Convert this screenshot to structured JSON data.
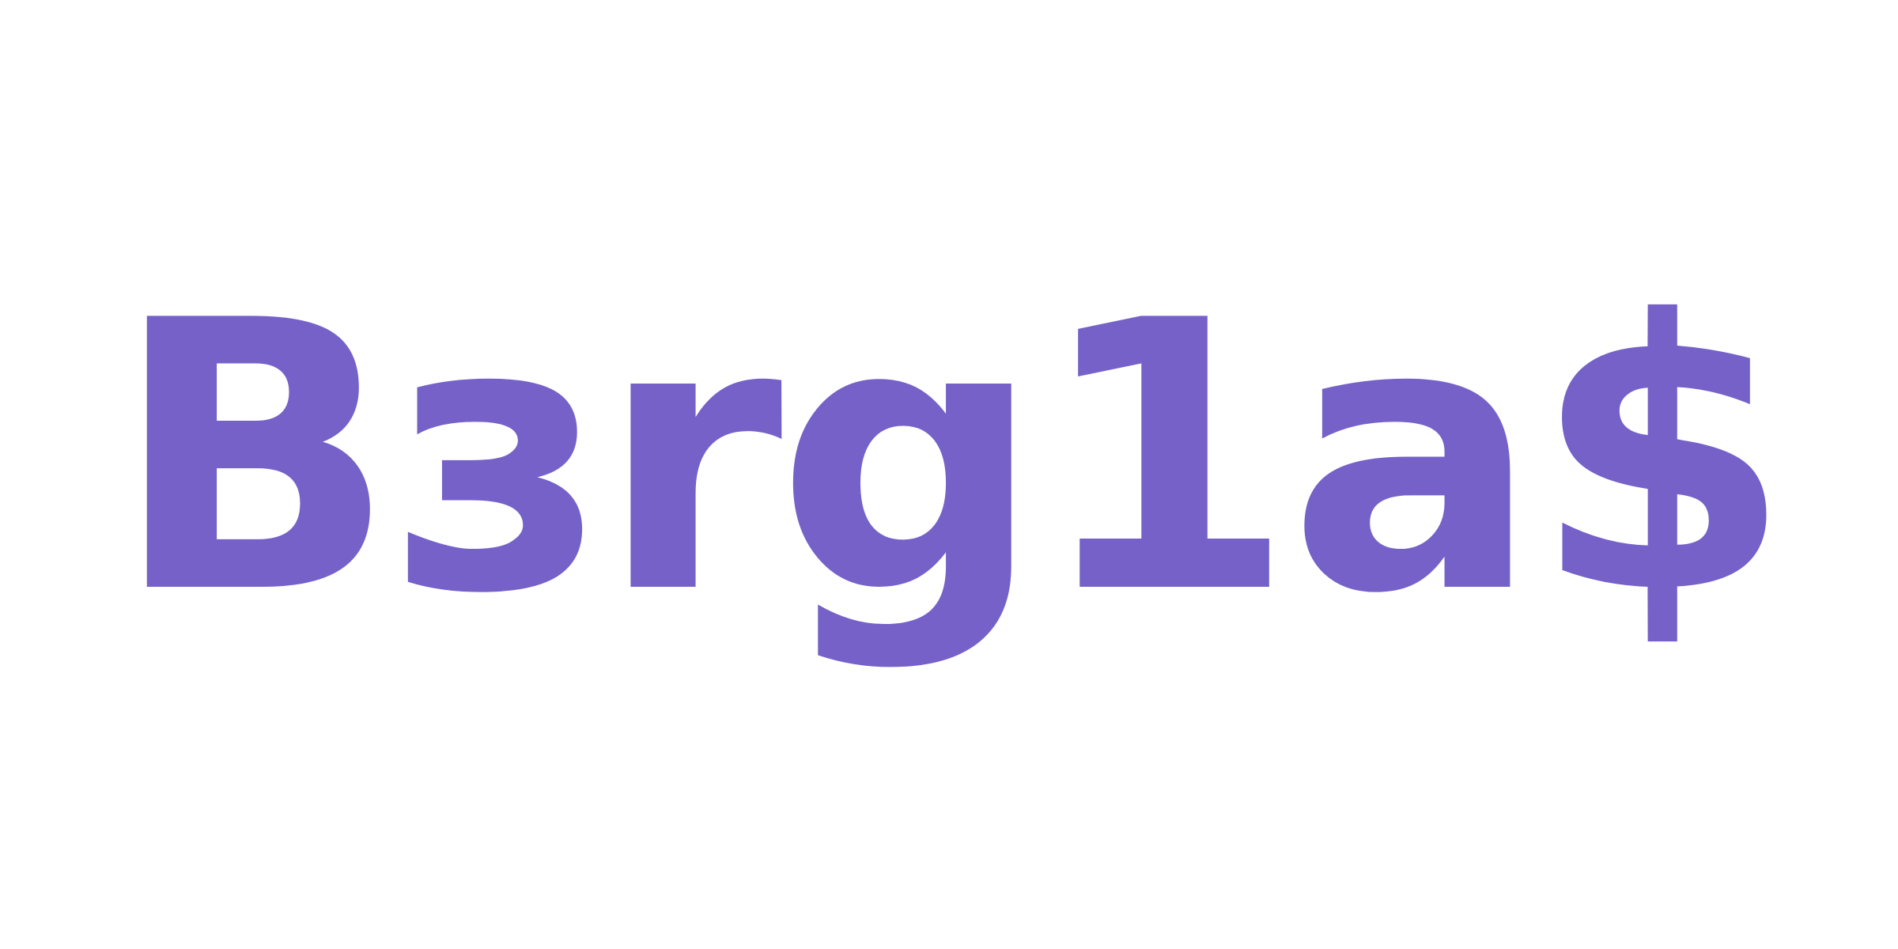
{
  "wordmark": {
    "text": "Bзrg1a$",
    "color": "#7661C9"
  },
  "background_color": "#FFFFFF"
}
